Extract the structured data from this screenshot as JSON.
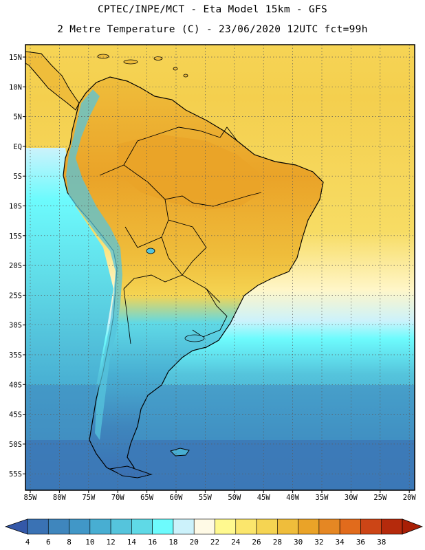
{
  "header": {
    "line1": "CPTEC/INPE/MCT -  Eta Model 15km - GFS",
    "line2": "2 Metre Temperature (C) - 23/06/2020 12UTC fct=99h"
  },
  "axes": {
    "lat_labels": [
      "15N",
      "10N",
      "5N",
      "EQ",
      "5S",
      "10S",
      "15S",
      "20S",
      "25S",
      "30S",
      "35S",
      "40S",
      "45S",
      "50S",
      "55S"
    ],
    "lon_labels": [
      "85W",
      "80W",
      "75W",
      "70W",
      "65W",
      "60W",
      "55W",
      "50W",
      "45W",
      "40W",
      "35W",
      "30W",
      "25W",
      "20W"
    ]
  },
  "colorbar": {
    "labels": [
      "4",
      "6",
      "8",
      "10",
      "12",
      "14",
      "16",
      "18",
      "20",
      "22",
      "24",
      "26",
      "28",
      "30",
      "32",
      "34",
      "36",
      "38"
    ],
    "colors": [
      "#3a72b4",
      "#3f86bd",
      "#4197c7",
      "#48aed2",
      "#55c4dc",
      "#5fd9e6",
      "#6dfbfd",
      "#ccf2fb",
      "#fffae6",
      "#fff98f",
      "#fbe66c",
      "#f5d452",
      "#efbd3b",
      "#eaa328",
      "#e58723",
      "#e16b1c",
      "#cc4516",
      "#b52a0c"
    ],
    "under_color": "#3458a8",
    "over_color": "#a81f06"
  },
  "map": {
    "ocean_colors": [
      "#fffae6",
      "#ccf2fb",
      "#6dfbfd",
      "#5fd9e6",
      "#55c4dc",
      "#48aed2",
      "#4197c7",
      "#3f86bd"
    ],
    "land_colors": [
      "#efbd3b",
      "#eaa328",
      "#f5d452",
      "#55c4dc",
      "#4197c7",
      "#3a72b4"
    ]
  }
}
